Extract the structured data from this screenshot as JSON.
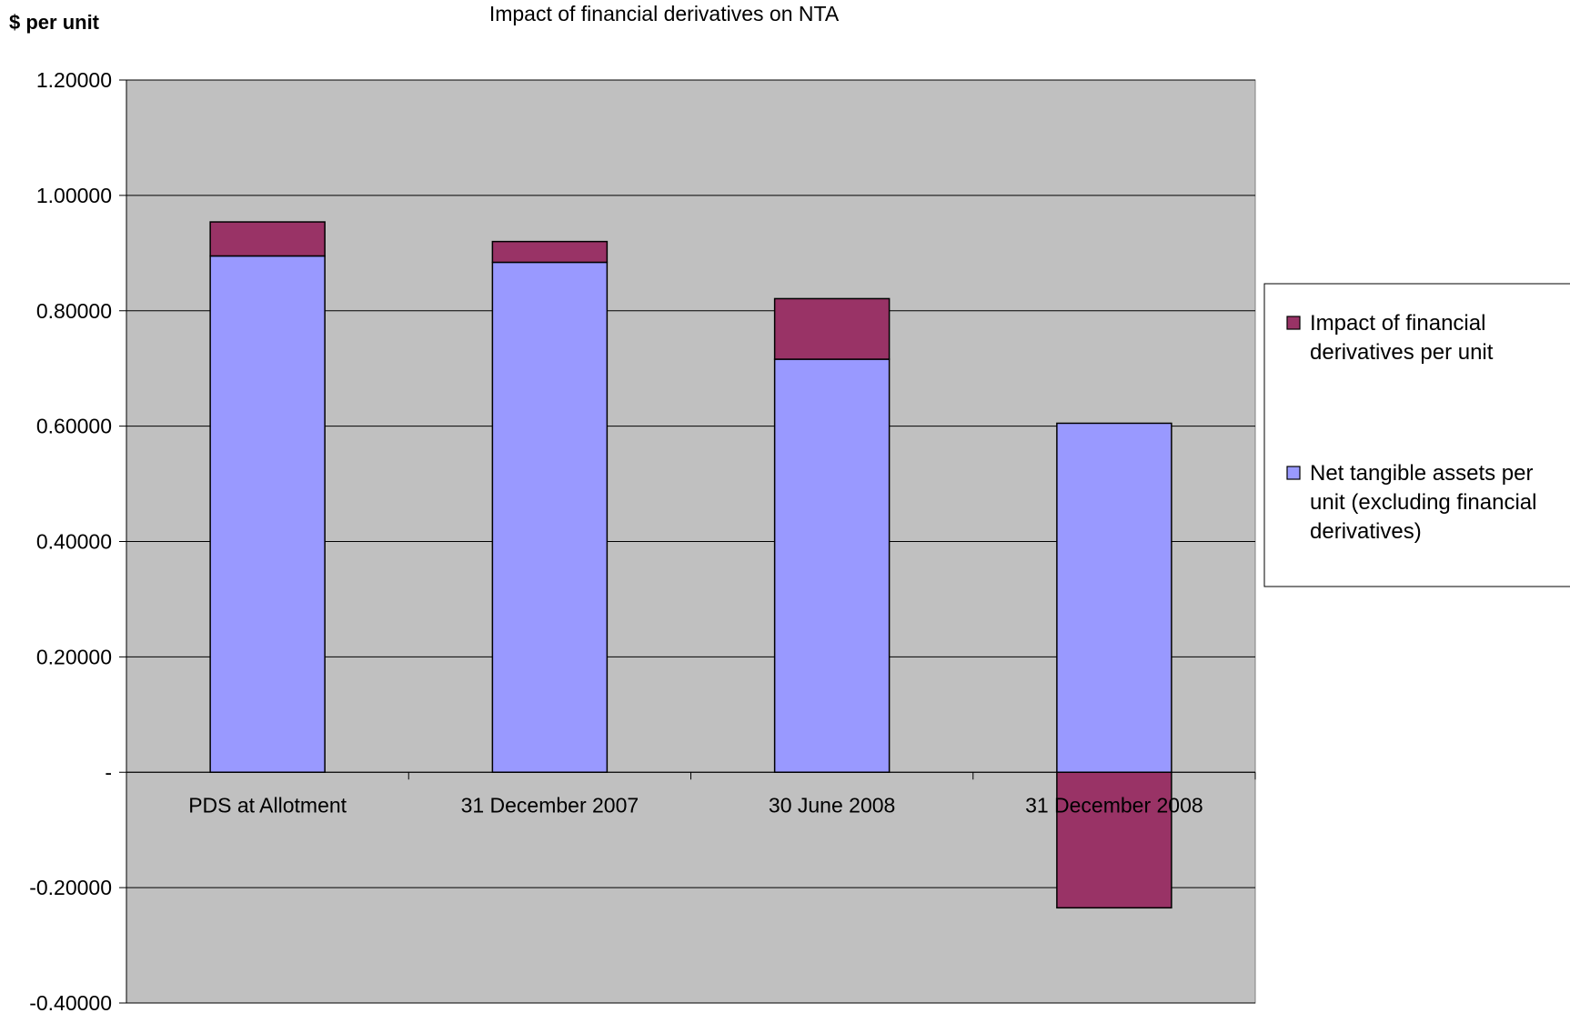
{
  "chart_data": {
    "type": "bar",
    "stacked": true,
    "title": "Impact of financial derivatives on NTA",
    "ylabel": "$ per unit",
    "xlabel": "",
    "categories": [
      "PDS at Allotment",
      "31 December 2007",
      "30 June 2008",
      "31 December 2008"
    ],
    "series": [
      {
        "name": "Net tangible assets per unit (excluding financial derivatives)",
        "legend_lines": [
          "Net tangible assets per",
          "unit (excluding financial",
          "derivatives)"
        ],
        "color": "#9999ff",
        "values": [
          0.895,
          0.884,
          0.716,
          0.605
        ]
      },
      {
        "name": "Impact of financial derivatives per unit",
        "legend_lines": [
          "Impact of financial",
          "derivatives per unit"
        ],
        "color": "#993366",
        "values": [
          0.059,
          0.036,
          0.105,
          -0.235
        ]
      }
    ],
    "ylim": [
      -0.4,
      1.2
    ],
    "yticks": [
      {
        "value": 1.2,
        "label": "1.20000"
      },
      {
        "value": 1.0,
        "label": "1.00000"
      },
      {
        "value": 0.8,
        "label": "0.80000"
      },
      {
        "value": 0.6,
        "label": "0.60000"
      },
      {
        "value": 0.4,
        "label": "0.40000"
      },
      {
        "value": 0.2,
        "label": "0.20000"
      },
      {
        "value": 0.0,
        "label": "-"
      },
      {
        "value": -0.2,
        "label": "-0.20000"
      },
      {
        "value": -0.4,
        "label": "-0.40000"
      }
    ],
    "grid": true,
    "plot_background": "#c0c0c0",
    "legend_position": "right"
  }
}
